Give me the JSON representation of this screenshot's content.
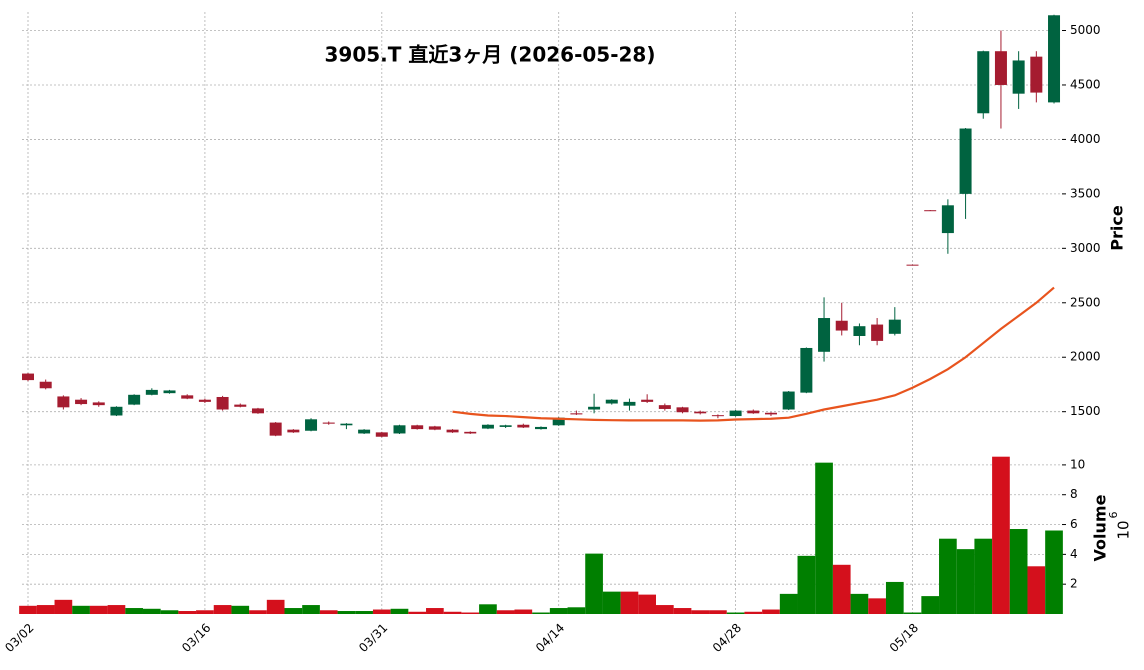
{
  "chart_data": [
    {
      "type": "candlestick",
      "title": "3905.T 直近3ヶ月 (2026-05-28)",
      "ylabel": "Price",
      "categories": [
        "03/02",
        null,
        null,
        null,
        null,
        null,
        null,
        null,
        null,
        null,
        "03/16",
        null,
        null,
        null,
        null,
        null,
        null,
        null,
        null,
        null,
        "03/31",
        null,
        null,
        null,
        null,
        null,
        null,
        null,
        null,
        null,
        "04/14",
        null,
        null,
        null,
        null,
        null,
        null,
        null,
        null,
        null,
        "04/28",
        null,
        null,
        null,
        null,
        null,
        null,
        null,
        null,
        null,
        "05/18",
        null,
        null,
        null,
        null,
        null,
        null,
        null,
        null
      ],
      "open": [
        1850,
        1775,
        1640,
        1610,
        1585,
        1465,
        1565,
        1655,
        1670,
        1650,
        1610,
        1635,
        1565,
        1530,
        1400,
        1335,
        1325,
        1400,
        1375,
        1300,
        1310,
        1300,
        1375,
        1365,
        1335,
        1315,
        1345,
        1360,
        1380,
        1340,
        1375,
        1485,
        1520,
        1575,
        1555,
        1610,
        1560,
        1540,
        1500,
        1468,
        1460,
        1510,
        1490,
        1520,
        1675,
        2050,
        2335,
        2195,
        2300,
        2215,
        2850,
        3350,
        3140,
        3500,
        4240,
        4810,
        4420,
        4760,
        4340
      ],
      "high": [
        1855,
        1795,
        1650,
        1625,
        1595,
        1550,
        1660,
        1715,
        1700,
        1660,
        1620,
        1645,
        1575,
        1535,
        1405,
        1340,
        1440,
        1410,
        1395,
        1340,
        1315,
        1380,
        1380,
        1370,
        1340,
        1320,
        1385,
        1380,
        1390,
        1365,
        1450,
        1510,
        1665,
        1615,
        1620,
        1660,
        1575,
        1545,
        1510,
        1475,
        1515,
        1520,
        1495,
        1690,
        2090,
        2550,
        2500,
        2310,
        2360,
        2460,
        2852,
        3352,
        3450,
        4105,
        4815,
        5000,
        4810,
        4810,
        5145
      ],
      "low": [
        1780,
        1705,
        1520,
        1560,
        1545,
        1460,
        1560,
        1650,
        1665,
        1615,
        1580,
        1510,
        1540,
        1480,
        1275,
        1305,
        1320,
        1380,
        1340,
        1295,
        1265,
        1295,
        1335,
        1330,
        1305,
        1295,
        1340,
        1350,
        1350,
        1335,
        1370,
        1470,
        1485,
        1565,
        1510,
        1580,
        1510,
        1485,
        1475,
        1440,
        1455,
        1480,
        1460,
        1515,
        1670,
        1960,
        2200,
        2110,
        2110,
        2200,
        2845,
        3343,
        2950,
        3270,
        4190,
        4100,
        4280,
        4340,
        4330
      ],
      "close": [
        1790,
        1715,
        1540,
        1570,
        1560,
        1545,
        1655,
        1700,
        1695,
        1620,
        1590,
        1520,
        1545,
        1485,
        1280,
        1310,
        1430,
        1390,
        1390,
        1335,
        1270,
        1375,
        1340,
        1335,
        1310,
        1300,
        1380,
        1375,
        1355,
        1360,
        1445,
        1475,
        1545,
        1610,
        1590,
        1590,
        1525,
        1495,
        1485,
        1460,
        1510,
        1485,
        1475,
        1685,
        2085,
        2360,
        2245,
        2285,
        2150,
        2345,
        2848,
        3345,
        3395,
        4100,
        4810,
        4500,
        4725,
        4430,
        5140
      ],
      "up_color": "#006340",
      "down_color": "#a51c30",
      "moving_average": {
        "color": "#e8541e",
        "values": [
          null,
          null,
          null,
          null,
          null,
          null,
          null,
          null,
          null,
          null,
          null,
          null,
          null,
          null,
          null,
          null,
          null,
          null,
          null,
          null,
          null,
          null,
          null,
          null,
          1500,
          1480,
          1465,
          1460,
          1450,
          1440,
          1435,
          1430,
          1425,
          1422,
          1420,
          1420,
          1420,
          1420,
          1418,
          1420,
          1428,
          1432,
          1435,
          1445,
          1480,
          1520,
          1550,
          1580,
          1610,
          1650,
          1720,
          1800,
          1890,
          2000,
          2130,
          2260,
          2380,
          2500,
          2640
        ]
      },
      "ylim": [
        1240,
        5170
      ],
      "yticks": [
        1500,
        2000,
        2500,
        3000,
        3500,
        4000,
        4500,
        5000
      ],
      "grid": true
    },
    {
      "type": "bar",
      "ylabel": "Volume",
      "scale_label": {
        "base": "10",
        "exponent": "6"
      },
      "values": [
        0.55,
        0.6,
        0.95,
        0.55,
        0.55,
        0.6,
        0.4,
        0.35,
        0.25,
        0.2,
        0.25,
        0.6,
        0.55,
        0.25,
        0.95,
        0.4,
        0.6,
        0.25,
        0.2,
        0.2,
        0.3,
        0.35,
        0.15,
        0.4,
        0.15,
        0.1,
        0.65,
        0.25,
        0.3,
        0.1,
        0.4,
        0.45,
        4.05,
        1.5,
        1.5,
        1.3,
        0.6,
        0.4,
        0.25,
        0.25,
        0.1,
        0.15,
        0.3,
        1.35,
        3.9,
        10.15,
        3.3,
        1.35,
        1.05,
        2.15,
        0.1,
        1.2,
        5.05,
        4.35,
        5.05,
        10.55,
        5.7,
        3.2,
        5.6
      ],
      "colors": [
        "#d4101c",
        "#d4101c",
        "#d4101c",
        "#007f00",
        "#d4101c",
        "#d4101c",
        "#007f00",
        "#007f00",
        "#007f00",
        "#d4101c",
        "#d4101c",
        "#d4101c",
        "#007f00",
        "#d4101c",
        "#d4101c",
        "#007f00",
        "#007f00",
        "#d4101c",
        "#007f00",
        "#007f00",
        "#d4101c",
        "#007f00",
        "#d4101c",
        "#d4101c",
        "#d4101c",
        "#d4101c",
        "#007f00",
        "#d4101c",
        "#d4101c",
        "#007f00",
        "#007f00",
        "#007f00",
        "#007f00",
        "#007f00",
        "#d4101c",
        "#d4101c",
        "#d4101c",
        "#d4101c",
        "#d4101c",
        "#d4101c",
        "#007f00",
        "#d4101c",
        "#d4101c",
        "#007f00",
        "#007f00",
        "#007f00",
        "#d4101c",
        "#007f00",
        "#d4101c",
        "#007f00",
        "#007f00",
        "#007f00",
        "#007f00",
        "#007f00",
        "#007f00",
        "#d4101c",
        "#007f00",
        "#d4101c",
        "#007f00"
      ],
      "ylim": [
        0,
        11.2
      ],
      "yticks": [
        2,
        4,
        6,
        8,
        10
      ],
      "grid": true
    }
  ]
}
